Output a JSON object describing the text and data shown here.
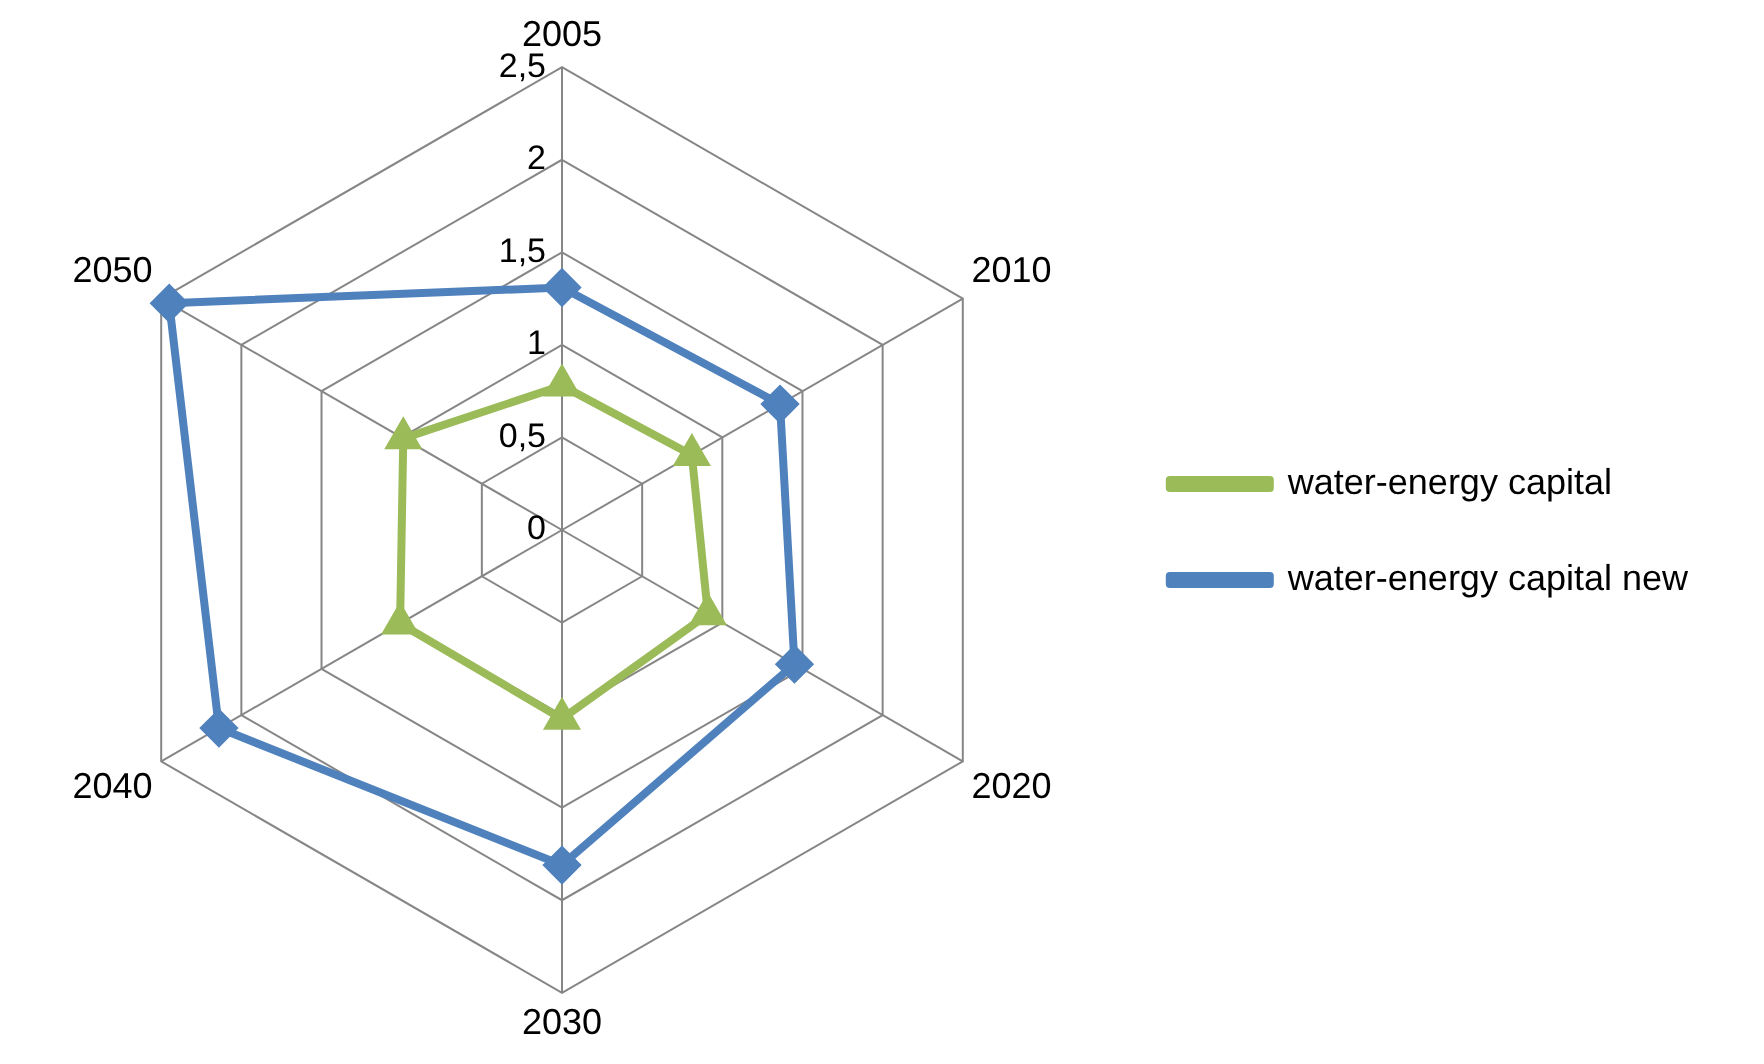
{
  "chart_data": {
    "type": "radar",
    "categories": [
      "2005",
      "2010",
      "2020",
      "2030",
      "2040",
      "2050"
    ],
    "series": [
      {
        "name": "water-energy capital",
        "color": "#9bbb59",
        "marker": "triangle",
        "values": [
          0.78,
          0.81,
          0.91,
          1.02,
          1.01,
          0.99
        ]
      },
      {
        "name": "water-energy capital new",
        "color": "#4f81bd",
        "marker": "diamond",
        "values": [
          1.31,
          1.36,
          1.45,
          1.81,
          2.14,
          2.45
        ]
      }
    ],
    "ylim": [
      0,
      2.5
    ],
    "yticks": [
      {
        "value": 0,
        "label": "0"
      },
      {
        "value": 0.5,
        "label": "0,5"
      },
      {
        "value": 1,
        "label": "1"
      },
      {
        "value": 1.5,
        "label": "1,5"
      },
      {
        "value": 2,
        "label": "2"
      },
      {
        "value": 2.5,
        "label": "2,5"
      }
    ],
    "grid": true,
    "legend": "right"
  }
}
